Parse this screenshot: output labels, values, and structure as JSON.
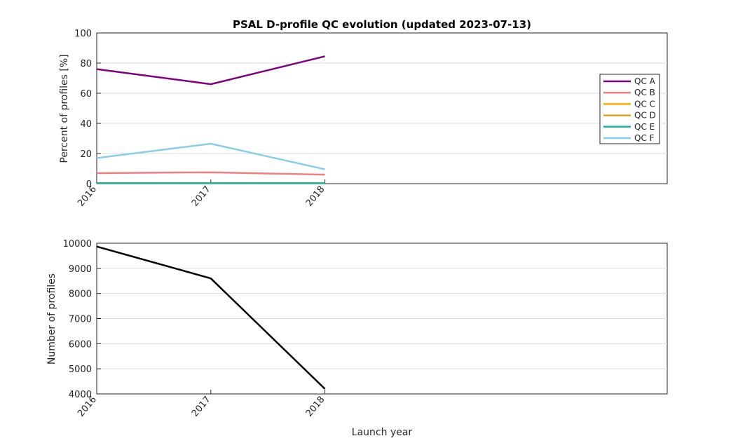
{
  "chart_data": [
    {
      "type": "line",
      "title": "PSAL D-profile QC evolution (updated 2023-07-13)",
      "xlabel": "",
      "ylabel": "Percent of profiles [%]",
      "x": [
        "2016",
        "2017",
        "2018"
      ],
      "xlim": [
        2016,
        2021
      ],
      "ylim": [
        0,
        100
      ],
      "yticks": [
        "0",
        "20",
        "40",
        "60",
        "80",
        "100"
      ],
      "grid": "y",
      "legend_position": "right",
      "series": [
        {
          "name": "QC A",
          "color": "#800080",
          "values": [
            76,
            66,
            84.5
          ]
        },
        {
          "name": "QC B",
          "color": "#f08080",
          "values": [
            7,
            7.5,
            6
          ]
        },
        {
          "name": "QC C",
          "color": "#ffa500",
          "values": [
            0.3,
            0.3,
            0.3
          ]
        },
        {
          "name": "QC D",
          "color": "#daa520",
          "values": [
            0.3,
            0.3,
            0.3
          ]
        },
        {
          "name": "QC E",
          "color": "#20b2aa",
          "values": [
            0.3,
            0.3,
            0.3
          ]
        },
        {
          "name": "QC F",
          "color": "#87ceeb",
          "values": [
            17,
            26.5,
            9.5
          ]
        }
      ]
    },
    {
      "type": "line",
      "title": "",
      "xlabel": "Launch year",
      "ylabel": "Number of profiles",
      "x": [
        "2016",
        "2017",
        "2018"
      ],
      "xlim": [
        2016,
        2021
      ],
      "ylim": [
        4000,
        10000
      ],
      "yticks": [
        "4000",
        "5000",
        "6000",
        "7000",
        "8000",
        "9000",
        "10000"
      ],
      "grid": "y",
      "series": [
        {
          "color": "#000000",
          "values": [
            9870,
            8600,
            4200
          ]
        }
      ]
    }
  ]
}
